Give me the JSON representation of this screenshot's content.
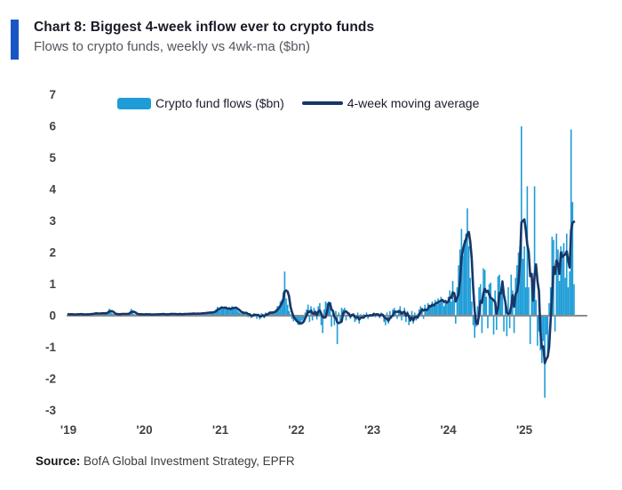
{
  "header": {
    "title": "Chart 8: Biggest 4-week inflow ever to crypto funds",
    "subtitle": "Flows to crypto funds, weekly vs 4wk-ma ($bn)"
  },
  "source": {
    "label": "Source:",
    "text": " BofA Global Investment Strategy, EPFR"
  },
  "colors": {
    "accent_bar": "#1856C5",
    "bar_blue": "#1E9CD7",
    "ma_navy": "#173668",
    "zero_axis_gray": "#8C8C8C",
    "tick_text": "#434343"
  },
  "chart_data": {
    "type": "bar",
    "title": "Chart 8: Biggest 4-week inflow ever to crypto funds",
    "subtitle": "Flows to crypto funds, weekly vs 4wk-ma ($bn)",
    "xlabel": "",
    "ylabel": "",
    "ylim": [
      -3,
      7
    ],
    "y_ticks": [
      7,
      6,
      5,
      4,
      3,
      2,
      1,
      0,
      -1,
      -2,
      -3
    ],
    "x_tick_labels": [
      "'19",
      "'20",
      "'21",
      "'22",
      "'23",
      "'24",
      "'25"
    ],
    "x_start_year": 2019,
    "frequency": "weekly",
    "grid": false,
    "legend_position": "top",
    "legend": [
      {
        "label": "Crypto fund flows ($bn)",
        "type": "bar",
        "color": "#1E9CD7"
      },
      {
        "label": "4-week moving average",
        "type": "line",
        "color": "#173668"
      }
    ],
    "series": [
      {
        "name": "Crypto fund flows ($bn)",
        "values": [
          0.05,
          0.03,
          0.06,
          0.04,
          0.02,
          0.05,
          0.07,
          0.04,
          0.03,
          0.06,
          0.05,
          0.02,
          0.04,
          0.07,
          0.05,
          0.03,
          0.06,
          0.08,
          0.1,
          0.06,
          0.04,
          0.08,
          0.1,
          0.08,
          0.05,
          0.07,
          0.1,
          0.15,
          0.22,
          0.12,
          0.07,
          0.05,
          0.04,
          0.06,
          0.05,
          0.03,
          0.06,
          0.08,
          0.05,
          0.04,
          0.06,
          0.08,
          0.12,
          0.22,
          0.1,
          0.05,
          0.04,
          0.06,
          0.05,
          0.03,
          0.05,
          0.04,
          0.04,
          0.06,
          0.03,
          0.05,
          0.04,
          0.02,
          0.05,
          0.06,
          0.04,
          0.03,
          0.05,
          0.07,
          0.04,
          0.05,
          0.03,
          0.06,
          0.04,
          0.05,
          0.07,
          0.05,
          0.04,
          0.06,
          0.05,
          0.04,
          0.06,
          0.05,
          0.04,
          0.05,
          0.07,
          0.06,
          0.05,
          0.07,
          0.06,
          0.08,
          0.06,
          0.05,
          0.07,
          0.08,
          0.06,
          0.07,
          0.09,
          0.08,
          0.1,
          0.09,
          0.1,
          0.12,
          0.09,
          0.11,
          0.15,
          0.2,
          0.28,
          0.22,
          0.25,
          0.3,
          0.2,
          0.28,
          0.22,
          0.18,
          0.25,
          0.2,
          0.3,
          0.22,
          0.28,
          0.2,
          0.15,
          0.1,
          0.08,
          0.12,
          0.06,
          0.1,
          0.08,
          -0.05,
          0.06,
          -0.08,
          0.05,
          0.08,
          0.06,
          -0.1,
          0.05,
          -0.12,
          0.08,
          0.05,
          -0.08,
          0.1,
          0.08,
          0.12,
          0.1,
          0.08,
          0.12,
          0.15,
          0.2,
          0.3,
          0.3,
          0.45,
          0.5,
          0.75,
          1.4,
          0.55,
          0.35,
          0.15,
          0.05,
          -0.1,
          -0.18,
          -0.12,
          -0.2,
          -0.28,
          -0.3,
          -0.2,
          -0.15,
          -0.1,
          0.1,
          0.2,
          0.35,
          -0.2,
          0.3,
          -0.15,
          0.25,
          0.1,
          -0.12,
          0.3,
          0.4,
          -0.3,
          -0.55,
          0.2,
          0.45,
          0.4,
          0.45,
          0.3,
          -0.35,
          0.2,
          -0.3,
          0.15,
          -0.9,
          0.1,
          -0.2,
          0.25,
          0.2,
          0.25,
          -0.15,
          0.05,
          0.1,
          -0.1,
          0.05,
          0.08,
          -0.2,
          -0.15,
          0.1,
          -0.25,
          0.05,
          -0.1,
          0.05,
          -0.05,
          0.1,
          -0.1,
          0.05,
          0.02,
          0.05,
          0.1,
          -0.05,
          0.08,
          0.05,
          -0.08,
          0.1,
          0.05,
          -0.2,
          -0.3,
          0.1,
          -0.25,
          0.15,
          -0.1,
          0.2,
          0.25,
          0.15,
          -0.1,
          0.2,
          0.3,
          -0.15,
          0.1,
          0.25,
          -0.2,
          0.15,
          -0.3,
          -0.2,
          0.15,
          -0.25,
          0.1,
          -0.15,
          0.05,
          0.2,
          0.3,
          0.25,
          -0.1,
          0.35,
          0.2,
          0.4,
          0.3,
          0.25,
          0.45,
          0.3,
          0.5,
          0.35,
          0.55,
          0.4,
          0.6,
          0.45,
          0.3,
          0.5,
          0.4,
          0.6,
          0.8,
          0.45,
          1.1,
          0.5,
          -0.25,
          0.9,
          1.6,
          2.1,
          2.75,
          1.9,
          2.4,
          2.6,
          3.4,
          2.2,
          1.2,
          0.45,
          -0.3,
          -0.7,
          -0.35,
          0.3,
          0.9,
          1.0,
          -0.55,
          1.5,
          1.45,
          0.6,
          -0.4,
          1.0,
          1.05,
          0.5,
          -0.6,
          0.8,
          -0.45,
          1.25,
          1.3,
          0.7,
          1.1,
          -0.5,
          0.45,
          -0.65,
          0.9,
          -0.4,
          1.3,
          0.8,
          -0.55,
          1.2,
          1.6,
          2.0,
          2.2,
          6.0,
          1.8,
          2.2,
          0.9,
          4.1,
          0.9,
          -0.9,
          1.2,
          0.7,
          4.1,
          0.5,
          -0.95,
          -0.5,
          -1.1,
          -1.5,
          -0.8,
          -2.6,
          -0.6,
          -1.2,
          0.4,
          0.9,
          2.5,
          2.4,
          -0.5,
          2.6,
          2.1,
          1.1,
          2.2,
          2.05,
          2.3,
          1.2,
          2.6,
          0.9,
          1.4,
          5.9,
          3.6,
          1.0
        ]
      },
      {
        "name": "4-week moving average",
        "derived_from": "Crypto fund flows ($bn)",
        "rule": "mean of trailing 4 weekly values"
      }
    ]
  }
}
